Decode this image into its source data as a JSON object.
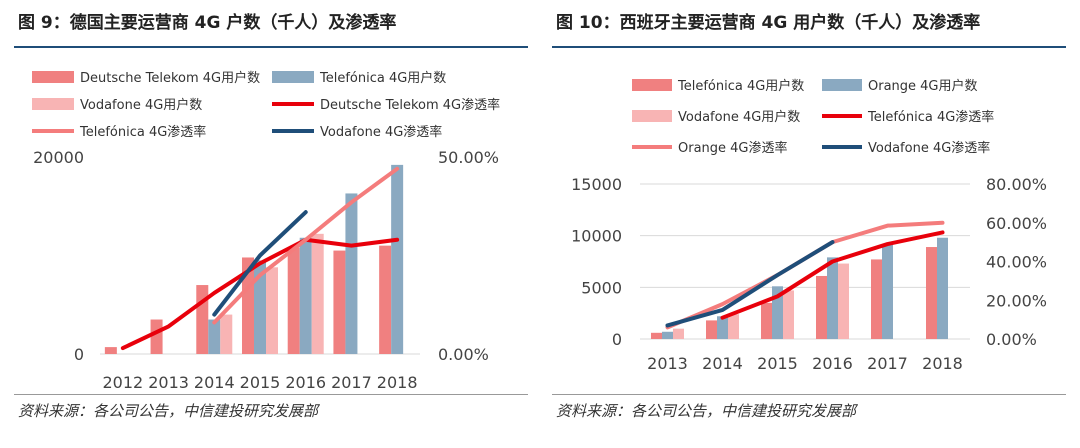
{
  "left": {
    "title": "图 9：德国主要运营商 4G 户数（千人）及渗透率",
    "source": "资料来源：各公司公告，中信建投研究发展部"
  },
  "right": {
    "title": "图 10：西班牙主要运营商 4G 用户数（千人）及渗透率",
    "source": "资料来源：各公司公告，中信建投研究发展部"
  },
  "chart_data": [
    {
      "type": "bar",
      "categories": [
        "2012",
        "2013",
        "2014",
        "2015",
        "2016",
        "2017",
        "2018"
      ],
      "y_left": {
        "range": [
          0,
          20000
        ],
        "ticks": [
          "0",
          "20000"
        ]
      },
      "y_right": {
        "range": [
          0,
          0.5
        ],
        "ticks": [
          "0.00%",
          "50.00%"
        ]
      },
      "series": [
        {
          "name": "Deutsche Telekom 4G用户数",
          "kind": "bar",
          "axis": "left",
          "color": "#f08080",
          "values": [
            700,
            3500,
            7000,
            9800,
            10800,
            10500,
            11000
          ]
        },
        {
          "name": "Telefónica 4G用户数",
          "kind": "bar",
          "axis": "left",
          "color": "#8aa9c1",
          "values": [
            null,
            null,
            3500,
            9500,
            11800,
            16300,
            19200
          ]
        },
        {
          "name": "Vodafone 4G用户数",
          "kind": "bar",
          "axis": "left",
          "color": "#f8b4b4",
          "values": [
            null,
            null,
            4000,
            8800,
            12200,
            null,
            null
          ]
        },
        {
          "name": "Deutsche Telekom 4G渗透率",
          "kind": "line",
          "axis": "right",
          "color": "#e8000b",
          "values": [
            0.015,
            0.07,
            0.155,
            0.23,
            0.29,
            0.275,
            0.29
          ]
        },
        {
          "name": "Telefónica 4G渗透率",
          "kind": "line",
          "axis": "right",
          "color": "#f47c7c",
          "values": [
            null,
            null,
            0.08,
            0.2,
            0.29,
            0.385,
            0.47
          ]
        },
        {
          "name": "Vodafone 4G渗透率",
          "kind": "line",
          "axis": "right",
          "color": "#1f4e79",
          "values": [
            null,
            null,
            0.1,
            0.25,
            0.36,
            null,
            null
          ]
        }
      ],
      "legend": "top",
      "grid": false
    },
    {
      "type": "bar",
      "categories": [
        "2013",
        "2014",
        "2015",
        "2016",
        "2017",
        "2018"
      ],
      "y_left": {
        "range": [
          0,
          15000
        ],
        "ticks": [
          "0",
          "5000",
          "10000",
          "15000"
        ]
      },
      "y_right": {
        "range": [
          0,
          0.8
        ],
        "ticks": [
          "0.00%",
          "20.00%",
          "40.00%",
          "60.00%",
          "80.00%"
        ]
      },
      "series": [
        {
          "name": "Telefónica 4G用户数",
          "kind": "bar",
          "axis": "left",
          "color": "#f08080",
          "values": [
            600,
            1800,
            3500,
            6100,
            7700,
            8900
          ]
        },
        {
          "name": "Orange 4G用户数",
          "kind": "bar",
          "axis": "left",
          "color": "#8aa9c1",
          "values": [
            700,
            2200,
            5100,
            7900,
            9200,
            9800
          ]
        },
        {
          "name": "Vodafone 4G用户数",
          "kind": "bar",
          "axis": "left",
          "color": "#f8b4b4",
          "values": [
            1000,
            2400,
            4700,
            7300,
            null,
            null
          ]
        },
        {
          "name": "Telefónica 4G渗透率",
          "kind": "line",
          "axis": "right",
          "color": "#e8000b",
          "values": [
            null,
            0.11,
            0.22,
            0.4,
            0.49,
            0.55
          ]
        },
        {
          "name": "Orange 4G渗透率",
          "kind": "line",
          "axis": "right",
          "color": "#f47c7c",
          "values": [
            0.06,
            0.18,
            0.33,
            0.5,
            0.585,
            0.6
          ]
        },
        {
          "name": "Vodafone 4G渗透率",
          "kind": "line",
          "axis": "right",
          "color": "#1f4e79",
          "values": [
            0.07,
            0.15,
            0.33,
            0.5,
            null,
            null
          ]
        }
      ],
      "legend": "top",
      "grid": true
    }
  ]
}
